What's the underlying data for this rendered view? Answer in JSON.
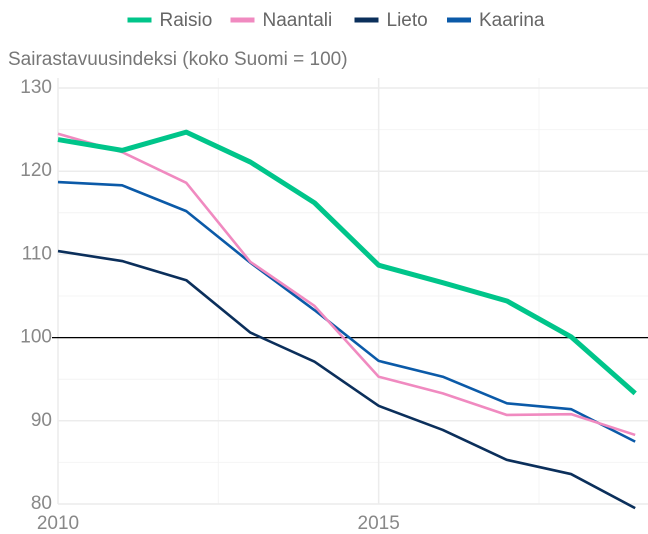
{
  "chart_data": {
    "type": "line",
    "ylabel": "Sairastavuusindeksi (koko Suomi = 100)",
    "x": [
      2010,
      2011,
      2012,
      2013,
      2014,
      2015,
      2016,
      2017,
      2018,
      2019
    ],
    "series": [
      {
        "name": "Raisio",
        "color": "#00c58a",
        "values": [
          123.8,
          122.5,
          124.7,
          121.1,
          116.2,
          108.7,
          106.6,
          104.4,
          100.1,
          93.3
        ]
      },
      {
        "name": "Naantali",
        "color": "#f08ac0",
        "values": [
          124.5,
          122.3,
          118.6,
          109.1,
          103.8,
          95.3,
          93.3,
          90.7,
          90.8,
          88.3
        ]
      },
      {
        "name": "Lieto",
        "color": "#0b2f5b",
        "values": [
          110.4,
          109.2,
          106.9,
          100.6,
          97.1,
          91.8,
          88.9,
          85.3,
          83.6,
          79.5
        ]
      },
      {
        "name": "Kaarina",
        "color": "#0b5aa8",
        "values": [
          118.7,
          118.3,
          115.2,
          109.0,
          103.3,
          97.2,
          95.3,
          92.1,
          91.4,
          87.5
        ]
      }
    ],
    "xlim": [
      2010,
      2019.2
    ],
    "xticks": [
      2010,
      2015
    ],
    "xminor": [
      2012.5,
      2017.5
    ],
    "ylim": [
      80,
      130
    ],
    "yticks": [
      80,
      90,
      100,
      110,
      120,
      130
    ],
    "yminor": [
      85,
      95,
      105,
      115,
      125
    ],
    "hline": 100,
    "grid": true,
    "legend": "top"
  }
}
